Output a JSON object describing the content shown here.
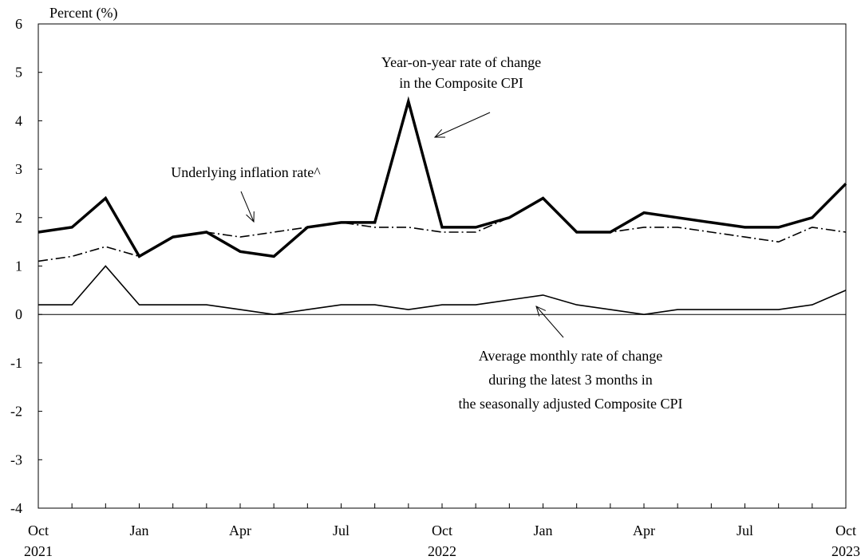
{
  "chart_data": {
    "type": "line",
    "ylabel": "Percent (%)",
    "ylim": [
      -4,
      6
    ],
    "yticks": [
      6,
      5,
      4,
      3,
      2,
      1,
      0,
      -1,
      -2,
      -3,
      -4
    ],
    "x": [
      "2021-10",
      "2021-11",
      "2021-12",
      "2022-01",
      "2022-02",
      "2022-03",
      "2022-04",
      "2022-05",
      "2022-06",
      "2022-07",
      "2022-08",
      "2022-09",
      "2022-10",
      "2022-11",
      "2022-12",
      "2023-01",
      "2023-02",
      "2023-03",
      "2023-04",
      "2023-05",
      "2023-06",
      "2023-07",
      "2023-08",
      "2023-09",
      "2023-10"
    ],
    "x_tick_labels": [
      {
        "index": 0,
        "month": "Oct",
        "year": "2021"
      },
      {
        "index": 3,
        "month": "Jan",
        "year": ""
      },
      {
        "index": 6,
        "month": "Apr",
        "year": ""
      },
      {
        "index": 9,
        "month": "Jul",
        "year": ""
      },
      {
        "index": 12,
        "month": "Oct",
        "year": "2022"
      },
      {
        "index": 15,
        "month": "Jan",
        "year": ""
      },
      {
        "index": 18,
        "month": "Apr",
        "year": ""
      },
      {
        "index": 21,
        "month": "Jul",
        "year": ""
      },
      {
        "index": 24,
        "month": "Oct",
        "year": "2023"
      }
    ],
    "series": [
      {
        "key": "yoy",
        "style": "thick",
        "values": [
          1.7,
          1.8,
          2.4,
          1.2,
          1.6,
          1.7,
          1.3,
          1.2,
          1.8,
          1.9,
          1.9,
          4.4,
          1.8,
          1.8,
          2.0,
          2.4,
          1.7,
          1.7,
          2.1,
          2.0,
          1.9,
          1.8,
          1.8,
          2.0,
          2.7
        ]
      },
      {
        "key": "underlying",
        "style": "dashdot",
        "values": [
          1.1,
          1.2,
          1.4,
          1.2,
          1.6,
          1.7,
          1.6,
          1.7,
          1.8,
          1.9,
          1.8,
          1.8,
          1.7,
          1.7,
          2.0,
          2.4,
          1.7,
          1.7,
          1.8,
          1.8,
          1.7,
          1.6,
          1.5,
          1.8,
          1.7
        ]
      },
      {
        "key": "monthly3m",
        "style": "thin",
        "values": [
          0.2,
          0.2,
          1.0,
          0.2,
          0.2,
          0.2,
          0.1,
          0.0,
          0.1,
          0.2,
          0.2,
          0.1,
          0.2,
          0.2,
          0.3,
          0.4,
          0.2,
          0.1,
          0.0,
          0.1,
          0.1,
          0.1,
          0.1,
          0.2,
          0.5
        ]
      }
    ],
    "annotations": [
      {
        "key": "yoy",
        "lines": [
          "Year-on-year rate of change",
          "in the Composite CPI"
        ]
      },
      {
        "key": "underlying",
        "lines": [
          "Underlying inflation rate^"
        ]
      },
      {
        "key": "monthly3m",
        "lines": [
          "Average monthly rate of change",
          "during the latest 3 months in",
          "the seasonally adjusted Composite CPI"
        ]
      }
    ],
    "grid": false,
    "legend": "none"
  }
}
